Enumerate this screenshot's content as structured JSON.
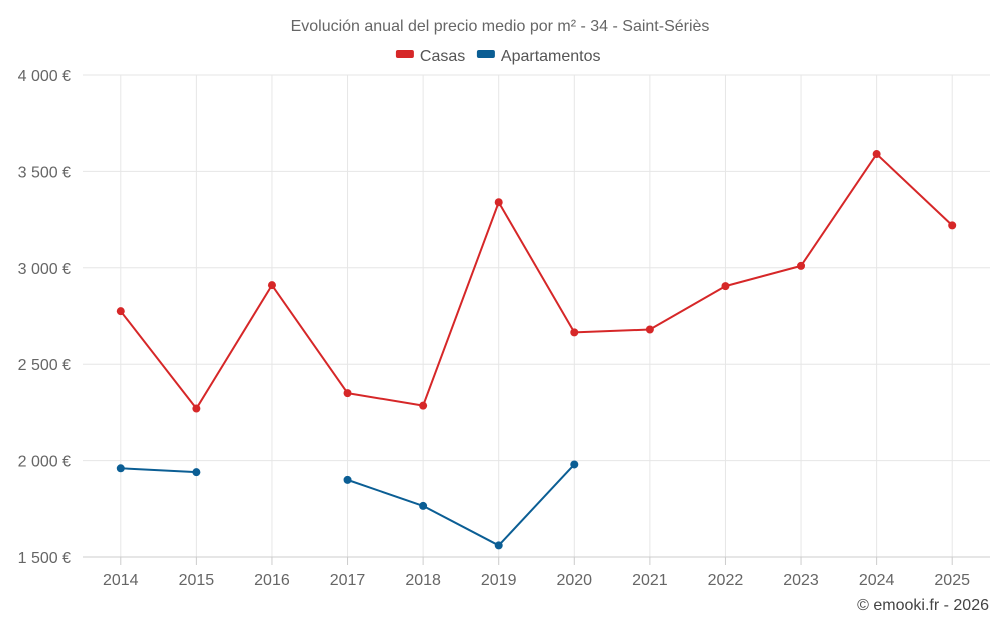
{
  "chart_data": {
    "type": "line",
    "title": "Evolución anual del precio medio por m² - 34 - Saint-Sériès",
    "categories": [
      "2014",
      "2015",
      "2016",
      "2017",
      "2018",
      "2019",
      "2020",
      "2021",
      "2022",
      "2023",
      "2024",
      "2025"
    ],
    "series": [
      {
        "name": "Casas",
        "color": "#d62728",
        "values": [
          2775,
          2270,
          2910,
          2350,
          2285,
          3340,
          2665,
          2680,
          2905,
          3010,
          3590,
          3220
        ]
      },
      {
        "name": "Apartamentos",
        "color": "#0b5e94",
        "values": [
          1960,
          1940,
          null,
          1900,
          1765,
          1560,
          1980,
          null,
          null,
          null,
          null,
          null
        ]
      }
    ],
    "ylim": [
      1500,
      4000
    ],
    "yticks": [
      1500,
      2000,
      2500,
      3000,
      3500,
      4000
    ],
    "ytick_labels": [
      "1 500 €",
      "2 000 €",
      "2 500 €",
      "3 000 €",
      "3 500 €",
      "4 000 €"
    ],
    "xlabel": "",
    "ylabel": "",
    "grid": true,
    "legend_position": "top-center"
  },
  "credit": "© emooki.fr - 2026"
}
